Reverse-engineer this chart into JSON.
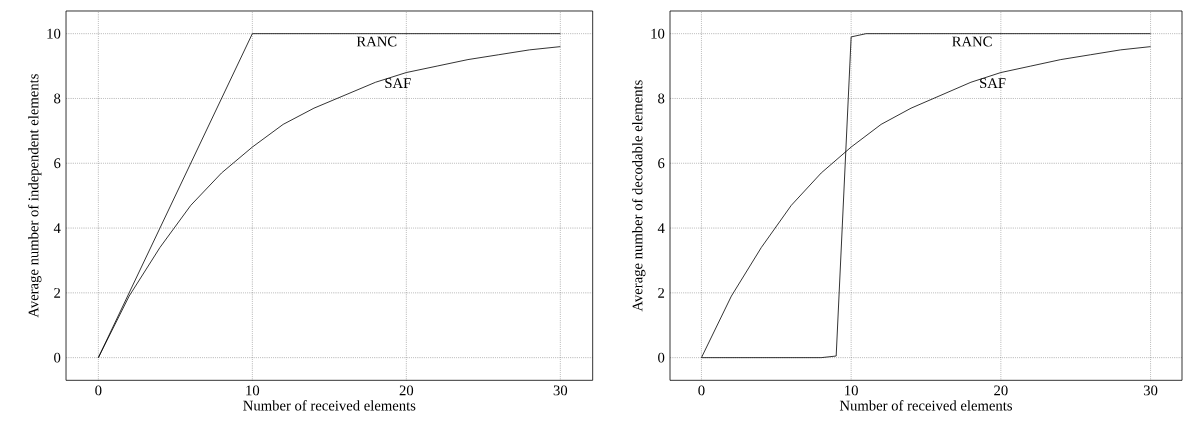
{
  "chart_data": [
    {
      "type": "line",
      "xlabel": "Number of received elements",
      "ylabel": "Average number of independent elements",
      "xlim": [
        -2.1,
        32.1
      ],
      "ylim": [
        -0.7,
        10.7
      ],
      "xticks": [
        0,
        10,
        20,
        30
      ],
      "yticks": [
        0,
        2,
        4,
        6,
        8,
        10
      ],
      "grid": true,
      "series": [
        {
          "name": "RANC",
          "color": "#000000",
          "x": [
            0,
            10,
            30
          ],
          "values": [
            0,
            10,
            10
          ]
        },
        {
          "name": "SAF",
          "color": "#000000",
          "x": [
            0,
            2,
            4,
            6,
            8,
            10,
            12,
            14,
            16,
            18,
            20,
            22,
            24,
            26,
            28,
            30
          ],
          "values": [
            0,
            1.9,
            3.4,
            4.7,
            5.7,
            6.5,
            7.2,
            7.7,
            8.1,
            8.5,
            8.8,
            9.0,
            9.2,
            9.35,
            9.5,
            9.6
          ]
        }
      ]
    },
    {
      "type": "line",
      "xlabel": "Number of received elements",
      "ylabel": "Average number of decodable elements",
      "xlim": [
        -2.1,
        32.1
      ],
      "ylim": [
        -0.7,
        10.7
      ],
      "xticks": [
        0,
        10,
        20,
        30
      ],
      "yticks": [
        0,
        2,
        4,
        6,
        8,
        10
      ],
      "grid": true,
      "series": [
        {
          "name": "RANC",
          "color": "#000000",
          "x": [
            0,
            8,
            9,
            10,
            11,
            30
          ],
          "values": [
            0,
            0,
            0.05,
            9.9,
            10,
            10
          ]
        },
        {
          "name": "SAF",
          "color": "#000000",
          "x": [
            0,
            2,
            4,
            6,
            8,
            10,
            12,
            14,
            16,
            18,
            20,
            22,
            24,
            26,
            28,
            30
          ],
          "values": [
            0,
            1.9,
            3.4,
            4.7,
            5.7,
            6.5,
            7.2,
            7.7,
            8.1,
            8.5,
            8.8,
            9.0,
            9.2,
            9.35,
            9.5,
            9.6
          ]
        }
      ]
    }
  ]
}
